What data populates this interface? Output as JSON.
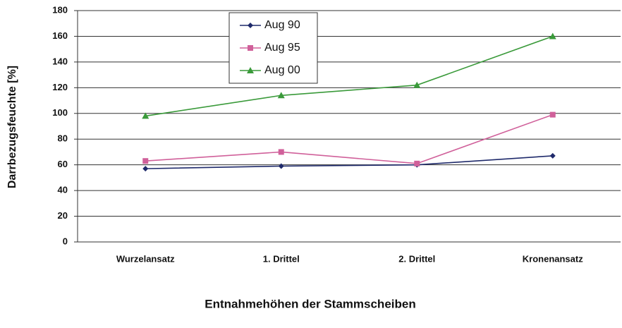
{
  "chart_data": {
    "type": "line",
    "categories": [
      "Wurzelansatz",
      "1. Drittel",
      "2. Drittel",
      "Kronenansatz"
    ],
    "series": [
      {
        "name": "Aug 90",
        "color": "#1f2a6b",
        "marker": "diamond",
        "values": [
          57,
          59,
          60,
          67
        ]
      },
      {
        "name": "Aug 95",
        "color": "#d0609a",
        "marker": "square",
        "values": [
          63,
          70,
          61,
          99
        ]
      },
      {
        "name": "Aug 00",
        "color": "#3a9a3a",
        "marker": "triangle",
        "values": [
          98,
          114,
          122,
          160
        ]
      }
    ],
    "y_label": "Darrbezugsfeuchte [%]",
    "x_label": "Entnahmehöhen der Stammscheiben",
    "ylim": [
      0,
      180
    ],
    "yticks": [
      0,
      20,
      40,
      60,
      80,
      100,
      120,
      140,
      160,
      180
    ],
    "grid": true
  }
}
